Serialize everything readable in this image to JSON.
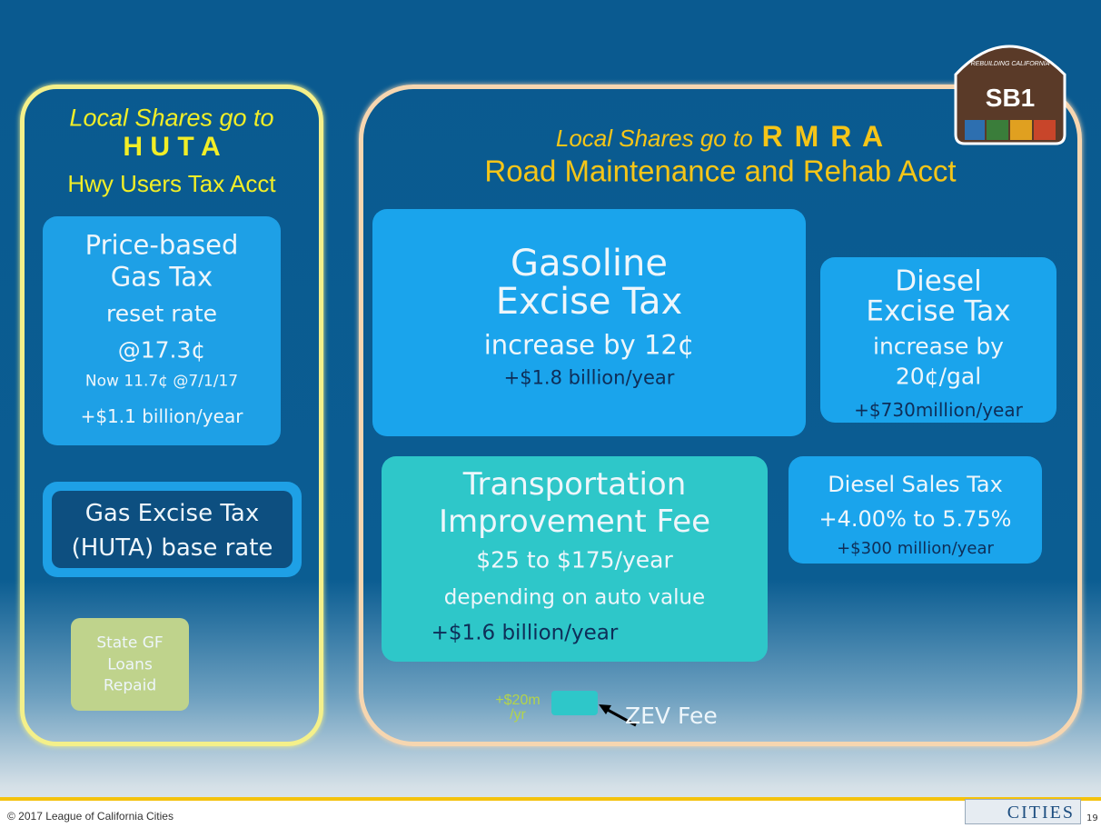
{
  "left": {
    "heading": [
      "Local Shares go to",
      "H U T A",
      "Hwy Users Tax Acct"
    ],
    "price_box": [
      "Price-based",
      "Gas Tax",
      "reset rate",
      "@17.3¢",
      "Now 11.7¢ @7/1/17",
      "+$1.1 billion/year"
    ],
    "base_box": [
      "Gas Excise Tax",
      "(HUTA) base rate"
    ],
    "loans_box": [
      "State GF",
      "Loans",
      "Repaid"
    ]
  },
  "right": {
    "heading": [
      "Local Shares go to",
      "R M R A",
      "Road Maintenance and Rehab Acct"
    ],
    "gasoline_box": [
      "Gasoline",
      "Excise Tax",
      "increase by 12¢",
      "+$1.8 billion/year"
    ],
    "diesel_box": [
      "Diesel",
      "Excise Tax",
      "increase by",
      "20¢/gal",
      "+$730million/year"
    ],
    "fee_box": [
      "Transportation",
      "Improvement Fee",
      "$25 to $175/year",
      "depending on auto value",
      "+$1.6 billion/year"
    ],
    "diesel_sales_box": [
      "Diesel Sales Tax",
      "+4.00% to 5.75%",
      "+$300 million/year"
    ],
    "zev": [
      "+$20m",
      "/yr",
      "ZEV Fee"
    ]
  },
  "badge": [
    "SB1",
    "REBUILDING CALIFORNIA"
  ],
  "footer": {
    "copyright": "© 2017 League of California Cities",
    "logo": "CITIES",
    "page": "19"
  }
}
